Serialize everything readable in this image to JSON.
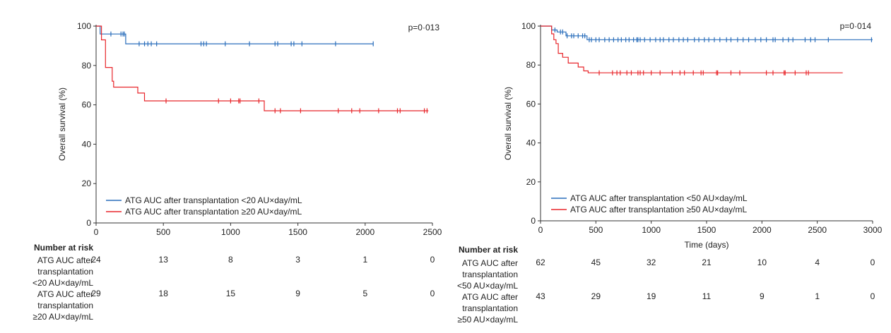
{
  "chart_data": [
    {
      "type": "line",
      "title": "",
      "pvalue": "p=0·013",
      "xlabel": "",
      "ylabel": "Overall survival (%)",
      "xlim": [
        0,
        2500
      ],
      "ylim": [
        0,
        100
      ],
      "xticks": [
        "0",
        "500",
        "1000",
        "1500",
        "2000",
        "2500"
      ],
      "yticks": [
        "0",
        "20",
        "40",
        "60",
        "80",
        "100"
      ],
      "legend_position": "bottom-left",
      "series": [
        {
          "name": "ATG AUC after transplantation <20 AU×day/mL",
          "color": "#2a6ebb",
          "x": [
            0,
            30,
            30,
            220,
            220,
            2060
          ],
          "y": [
            100,
            100,
            96,
            96,
            91,
            91
          ],
          "censor_x": [
            110,
            185,
            200,
            210,
            320,
            360,
            385,
            410,
            450,
            780,
            800,
            820,
            960,
            1140,
            1330,
            1350,
            1450,
            1470,
            1530,
            1780,
            2060
          ]
        },
        {
          "name": "ATG AUC after transplantation ≥20 AU×day/mL",
          "color": "#e8262b",
          "x": [
            0,
            40,
            40,
            70,
            70,
            120,
            120,
            130,
            130,
            310,
            310,
            360,
            360,
            1250,
            1250,
            2470
          ],
          "y": [
            100,
            100,
            93,
            93,
            79,
            79,
            72,
            72,
            69,
            69,
            66,
            66,
            62,
            62,
            57,
            57
          ],
          "censor_x": [
            520,
            910,
            1000,
            1060,
            1070,
            1210,
            1330,
            1370,
            1520,
            1800,
            1900,
            1960,
            2100,
            2240,
            2260,
            2440,
            2460
          ]
        }
      ],
      "risk_table": {
        "heading": "Number at risk",
        "rows": [
          {
            "label_lines": [
              "ATG AUC after",
              "transplantation",
              "<20 AU×day/mL"
            ],
            "counts": [
              "24",
              "13",
              "8",
              "3",
              "1",
              "0"
            ]
          },
          {
            "label_lines": [
              "ATG AUC after",
              "transplantation",
              "≥20 AU×day/mL"
            ],
            "counts": [
              "29",
              "18",
              "15",
              "9",
              "5",
              "0"
            ]
          }
        ]
      }
    },
    {
      "type": "line",
      "title": "",
      "pvalue": "p=0·014",
      "xlabel": "Time (days)",
      "ylabel": "Overall survival (%)",
      "xlim": [
        0,
        3000
      ],
      "ylim": [
        0,
        100
      ],
      "xticks": [
        "0",
        "500",
        "1000",
        "1500",
        "2000",
        "2500",
        "3000"
      ],
      "yticks": [
        "0",
        "20",
        "40",
        "60",
        "80",
        "100"
      ],
      "legend_position": "bottom-left",
      "series": [
        {
          "name": "ATG AUC after transplantation <50 AU×day/mL",
          "color": "#2a6ebb",
          "x": [
            0,
            100,
            100,
            150,
            150,
            230,
            230,
            420,
            420,
            3000
          ],
          "y": [
            100,
            100,
            98,
            98,
            97,
            97,
            95,
            95,
            93,
            93
          ],
          "censor_x": [
            130,
            180,
            200,
            240,
            280,
            300,
            340,
            380,
            400,
            440,
            460,
            500,
            530,
            580,
            620,
            660,
            700,
            730,
            770,
            800,
            840,
            870,
            880,
            900,
            940,
            990,
            1040,
            1080,
            1110,
            1160,
            1200,
            1250,
            1290,
            1330,
            1390,
            1430,
            1480,
            1520,
            1570,
            1620,
            1680,
            1720,
            1780,
            1830,
            1880,
            1940,
            1990,
            2040,
            2100,
            2120,
            2190,
            2240,
            2280,
            2390,
            2440,
            2480,
            2600,
            2990
          ]
        },
        {
          "name": "ATG AUC after transplantation ≥50 AU×day/mL",
          "color": "#e8262b",
          "x": [
            0,
            100,
            100,
            120,
            120,
            140,
            140,
            160,
            160,
            200,
            200,
            250,
            250,
            340,
            340,
            390,
            390,
            430,
            430,
            2730
          ],
          "y": [
            100,
            100,
            96,
            96,
            93,
            93,
            91,
            91,
            86,
            86,
            84,
            84,
            81,
            81,
            79,
            79,
            77,
            77,
            76,
            76
          ],
          "censor_x": [
            530,
            650,
            690,
            720,
            780,
            820,
            880,
            900,
            930,
            1000,
            1080,
            1190,
            1260,
            1300,
            1380,
            1450,
            1470,
            1590,
            1600,
            1720,
            1800,
            2040,
            2100,
            2200,
            2210,
            2300,
            2400,
            2420
          ]
        }
      ],
      "risk_table": {
        "heading": "Number at risk",
        "rows": [
          {
            "label_lines": [
              "ATG AUC after",
              "transplantation",
              "<50 AU×day/mL"
            ],
            "counts": [
              "62",
              "45",
              "32",
              "21",
              "10",
              "4",
              "0"
            ]
          },
          {
            "label_lines": [
              "ATG AUC after",
              "transplantation",
              "≥50 AU×day/mL"
            ],
            "counts": [
              "43",
              "29",
              "19",
              "11",
              "9",
              "1",
              "0"
            ]
          }
        ]
      }
    }
  ]
}
